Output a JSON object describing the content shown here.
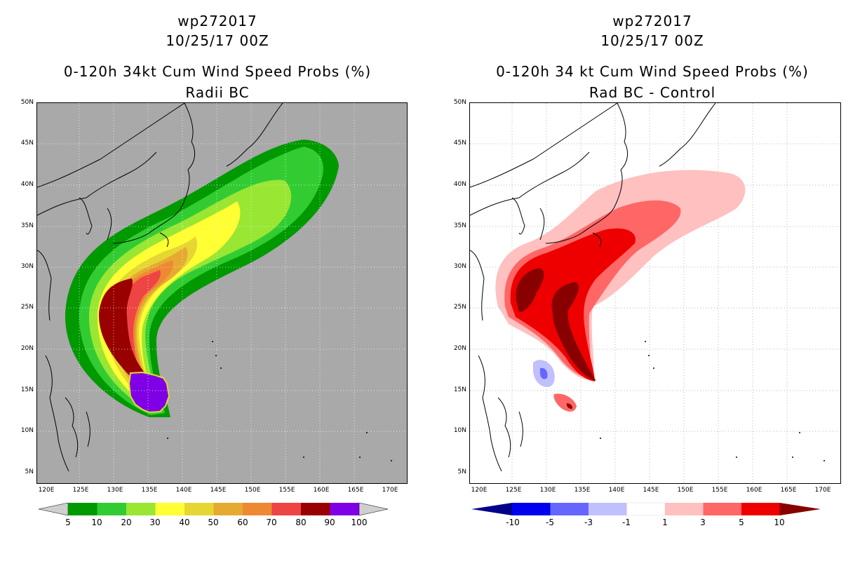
{
  "left_panel": {
    "storm_id": "wp272017",
    "date": "10/25/17 00Z",
    "title": "0-120h 34kt Cum Wind Speed Probs (%)",
    "subtitle": "Radii BC",
    "colorbar": {
      "labels": [
        "5",
        "10",
        "20",
        "30",
        "40",
        "50",
        "60",
        "70",
        "80",
        "90",
        "100"
      ],
      "colors": [
        "#cfcfcf",
        "#009900",
        "#32cc32",
        "#99e633",
        "#ffff33",
        "#e6d633",
        "#e6aa33",
        "#ee8833",
        "#ee4444",
        "#990000",
        "#8000e6",
        "#cfcfcf"
      ]
    }
  },
  "right_panel": {
    "storm_id": "wp272017",
    "date": "10/25/17 00Z",
    "title": "0-120h 34 kt Cum Wind Speed Probs (%)",
    "subtitle": "Rad BC - Control",
    "colorbar": {
      "labels": [
        "-10",
        "-5",
        "-3",
        "-1",
        "1",
        "3",
        "5",
        "10"
      ],
      "colors": [
        "#000088",
        "#0000ee",
        "#6666ff",
        "#c0c0ff",
        "#ffffff",
        "#ffc0c0",
        "#ff6666",
        "#ee0000",
        "#880000"
      ]
    }
  },
  "axes": {
    "lat_labels": [
      "50N",
      "45N",
      "40N",
      "35N",
      "30N",
      "25N",
      "20N",
      "15N",
      "10N",
      "5N"
    ],
    "lon_labels": [
      "120E",
      "125E",
      "130E",
      "135E",
      "140E",
      "145E",
      "150E",
      "155E",
      "160E",
      "165E",
      "170E"
    ]
  },
  "colors": {
    "map_background_left": "#a9a9a9",
    "map_background_right": "#ffffff"
  }
}
